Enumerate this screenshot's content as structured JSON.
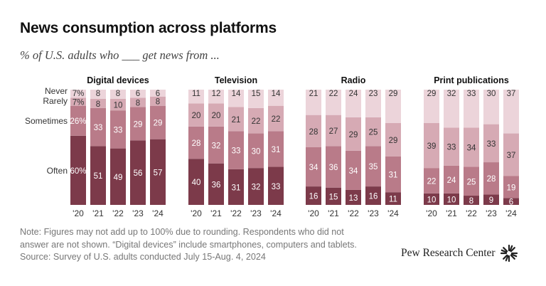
{
  "title": "News consumption across platforms",
  "subtitle": "% of U.S. adults who ___ get news from ...",
  "notes": {
    "line1": "Note: Figures may not add up to 100% due to rounding. Respondents who did not",
    "line2": "answer are not shown. “Digital devices” include smartphones, computers and tablets.",
    "source": "Source: Survey of U.S. adults conducted July 15-Aug. 4, 2024"
  },
  "brand": "Pew Research Center",
  "colors": {
    "often": "#7c3a4a",
    "sometimes": "#b97b89",
    "rarely": "#d6aab4",
    "never": "#ecd4da",
    "label_light": "#ffffff",
    "label_dark": "#333333"
  },
  "chart_data": {
    "type": "stacked-bar",
    "years": [
      "'20",
      "'21",
      "'22",
      "'23",
      "'24"
    ],
    "categories": [
      "Often",
      "Sometimes",
      "Rarely",
      "Never"
    ],
    "category_labels": [
      "Never",
      "Rarely",
      "Sometimes",
      "Often"
    ],
    "panels": [
      {
        "name": "Digital devices",
        "often": [
          60,
          51,
          49,
          56,
          57
        ],
        "sometimes": [
          26,
          33,
          33,
          29,
          29
        ],
        "rarely": [
          7,
          8,
          10,
          8,
          8
        ],
        "never": [
          7,
          8,
          8,
          6,
          6
        ],
        "often_labels": [
          "60%",
          "51",
          "49",
          "56",
          "57"
        ],
        "sometimes_labels": [
          "26%",
          "33",
          "33",
          "29",
          "29"
        ],
        "rarely_labels": [
          "7%",
          "8",
          "10",
          "8",
          "8"
        ],
        "never_labels": [
          "7%",
          "8",
          "8",
          "6",
          "6"
        ]
      },
      {
        "name": "Television",
        "often": [
          40,
          36,
          31,
          32,
          33
        ],
        "sometimes": [
          28,
          32,
          33,
          30,
          31
        ],
        "rarely": [
          20,
          20,
          21,
          22,
          22
        ],
        "never": [
          11,
          12,
          14,
          15,
          14
        ],
        "often_labels": [
          "40",
          "36",
          "31",
          "32",
          "33"
        ],
        "sometimes_labels": [
          "28",
          "32",
          "33",
          "30",
          "31"
        ],
        "rarely_labels": [
          "20",
          "20",
          "21",
          "22",
          "22"
        ],
        "never_labels": [
          "11",
          "12",
          "14",
          "15",
          "14"
        ]
      },
      {
        "name": "Radio",
        "often": [
          16,
          15,
          13,
          16,
          11
        ],
        "sometimes": [
          34,
          36,
          34,
          35,
          31
        ],
        "rarely": [
          28,
          27,
          29,
          25,
          29
        ],
        "never": [
          21,
          22,
          24,
          23,
          29
        ],
        "often_labels": [
          "16",
          "15",
          "13",
          "16",
          "11"
        ],
        "sometimes_labels": [
          "34",
          "36",
          "34",
          "35",
          "31"
        ],
        "rarely_labels": [
          "28",
          "27",
          "29",
          "25",
          "29"
        ],
        "never_labels": [
          "21",
          "22",
          "24",
          "23",
          "29"
        ]
      },
      {
        "name": "Print publications",
        "often": [
          10,
          10,
          8,
          9,
          6
        ],
        "sometimes": [
          22,
          24,
          25,
          28,
          19
        ],
        "rarely": [
          39,
          33,
          34,
          33,
          37
        ],
        "never": [
          29,
          32,
          33,
          30,
          37
        ],
        "often_labels": [
          "10",
          "10",
          "8",
          "9",
          "6"
        ],
        "sometimes_labels": [
          "22",
          "24",
          "25",
          "28",
          "19"
        ],
        "rarely_labels": [
          "39",
          "33",
          "34",
          "33",
          "37"
        ],
        "never_labels": [
          "29",
          "32",
          "33",
          "30",
          "37"
        ]
      }
    ]
  }
}
